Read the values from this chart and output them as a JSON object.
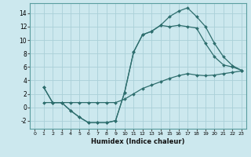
{
  "xlabel": "Humidex (Indice chaleur)",
  "bg_color": "#cce8ee",
  "line_color": "#2e6e6e",
  "grid_color": "#aad0d8",
  "xlim": [
    -0.5,
    23.5
  ],
  "ylim": [
    -3.2,
    15.5
  ],
  "xticks": [
    0,
    1,
    2,
    3,
    4,
    5,
    6,
    7,
    8,
    9,
    10,
    11,
    12,
    13,
    14,
    15,
    16,
    17,
    18,
    19,
    20,
    21,
    22,
    23
  ],
  "yticks": [
    -2,
    0,
    2,
    4,
    6,
    8,
    10,
    12,
    14
  ],
  "curve1_x": [
    1,
    2,
    3,
    4,
    5,
    6,
    7,
    8,
    9,
    10,
    11,
    12,
    13,
    14,
    15,
    16,
    17,
    18,
    19,
    20,
    21,
    22,
    23
  ],
  "curve1_y": [
    0.7,
    0.7,
    0.7,
    0.7,
    0.7,
    0.7,
    0.7,
    0.7,
    0.7,
    1.2,
    2.0,
    2.8,
    3.3,
    3.8,
    4.3,
    4.7,
    5.0,
    4.8,
    4.7,
    4.8,
    5.0,
    5.2,
    5.4
  ],
  "curve2_x": [
    1,
    2,
    3,
    4,
    5,
    6,
    7,
    8,
    9,
    10,
    11,
    12,
    13,
    14,
    15,
    16,
    17,
    18,
    19,
    20,
    21,
    22,
    23
  ],
  "curve2_y": [
    3.0,
    0.7,
    0.7,
    -0.5,
    -1.5,
    -2.3,
    -2.3,
    -2.3,
    -2.0,
    2.2,
    8.2,
    10.8,
    11.3,
    12.2,
    13.5,
    14.3,
    14.8,
    13.5,
    12.0,
    9.5,
    7.5,
    6.2,
    5.5
  ],
  "curve3_x": [
    1,
    2,
    3,
    4,
    5,
    6,
    7,
    8,
    9,
    10,
    11,
    12,
    13,
    14,
    15,
    16,
    17,
    18,
    19,
    20,
    21,
    22,
    23
  ],
  "curve3_y": [
    3.0,
    0.7,
    0.7,
    -0.5,
    -1.5,
    -2.3,
    -2.3,
    -2.3,
    -2.0,
    2.2,
    8.2,
    10.8,
    11.3,
    12.2,
    12.0,
    12.2,
    12.0,
    11.8,
    9.5,
    7.5,
    6.3,
    6.0,
    5.5
  ]
}
